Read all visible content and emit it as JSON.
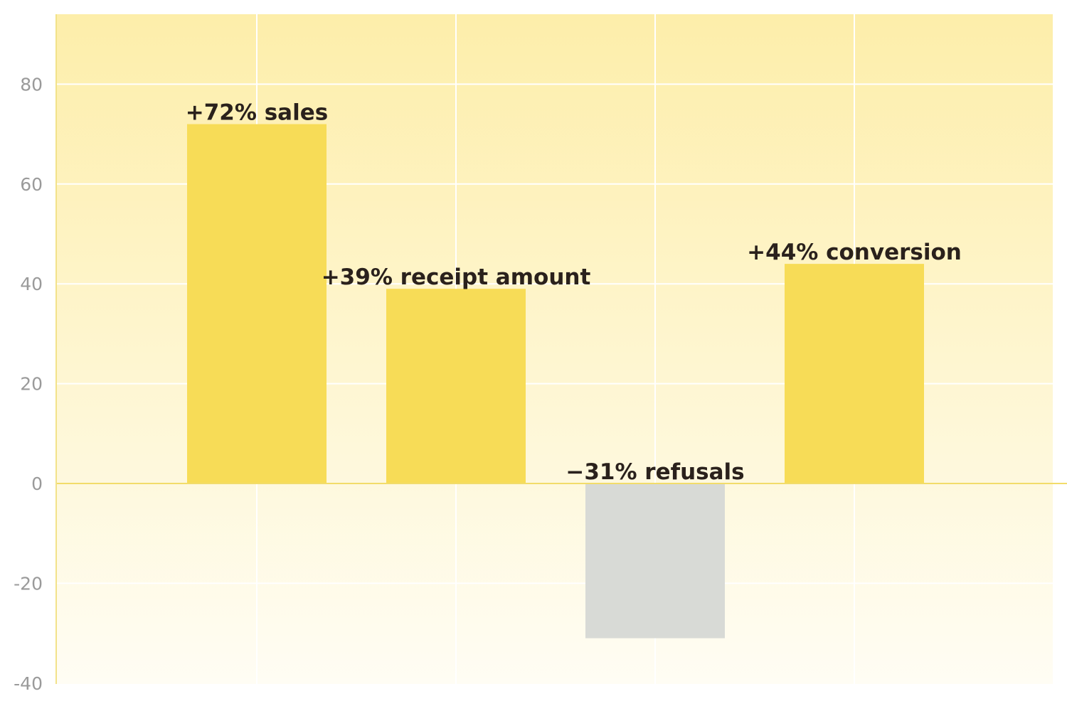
{
  "chart_data": {
    "type": "bar",
    "categories": [
      "sales",
      "receipt amount",
      "refusals",
      "conversion"
    ],
    "values": [
      72,
      39,
      -31,
      44
    ],
    "data_labels": [
      "+72% sales",
      "+39% receipt amount",
      "−31% refusals",
      "+44% conversion"
    ],
    "y_ticks": [
      80,
      60,
      40,
      20,
      0,
      -20,
      -40
    ],
    "ylim": [
      -40,
      94
    ],
    "grid": true,
    "colors": {
      "positive_bar": "#f7dc57",
      "negative_bar": "#d8dad6",
      "plot_top": "#fdeeaa",
      "plot_bottom": "#fffdf4",
      "gridline": "#ffffff",
      "zero_line": "#f2dc6a",
      "axis_line": "#f2e28a"
    }
  }
}
